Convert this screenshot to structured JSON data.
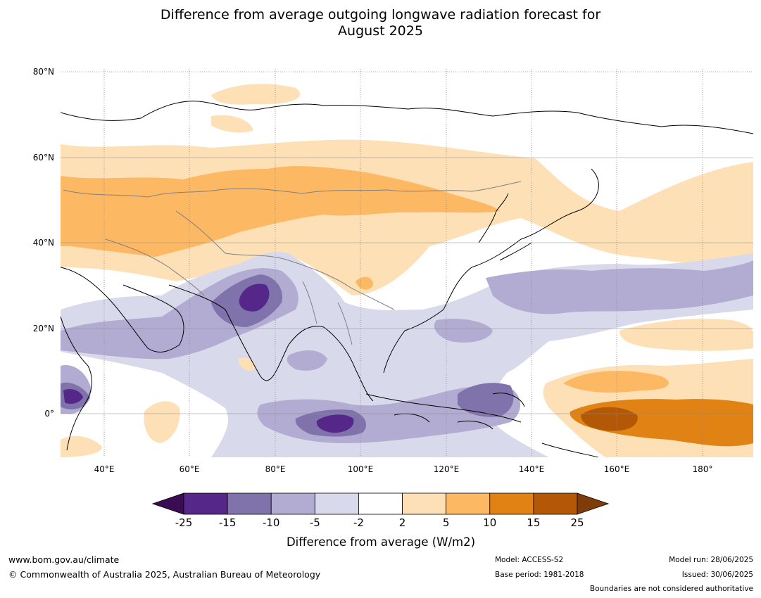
{
  "title": {
    "line1": "Difference from average outgoing longwave radiation forecast for",
    "line2": "August 2025"
  },
  "map": {
    "lat_labels": [
      "80°N",
      "60°N",
      "40°N",
      "20°N",
      "0°"
    ],
    "lon_labels": [
      "40°E",
      "60°E",
      "80°E",
      "100°E",
      "120°E",
      "140°E",
      "160°E",
      "180°"
    ],
    "extent": {
      "lon": [
        30,
        192
      ],
      "lat": [
        -10,
        80
      ]
    },
    "gridlines": true
  },
  "colorbar": {
    "tick_labels": [
      "-25",
      "-15",
      "-10",
      "-5",
      "-2",
      "2",
      "5",
      "10",
      "15",
      "25"
    ],
    "colors": [
      "#3b0c54",
      "#542788",
      "#8073ac",
      "#b2abd2",
      "#d8daeb",
      "#ffffff",
      "#fee0b6",
      "#fdb863",
      "#e08214",
      "#b35806",
      "#7f3b08"
    ],
    "label": "Difference from average (W/m2)"
  },
  "footer": {
    "website": "www.bom.gov.au/climate",
    "copyright": "© Commonwealth of Australia 2025, Australian Bureau of Meteorology",
    "model": "Model: ACCESS-S2",
    "base_period": "Base period: 1981-2018",
    "model_run": "Model run: 28/06/2025",
    "issued": "Issued: 30/06/2025",
    "disclaimer": "Boundaries are not considered authoritative"
  }
}
